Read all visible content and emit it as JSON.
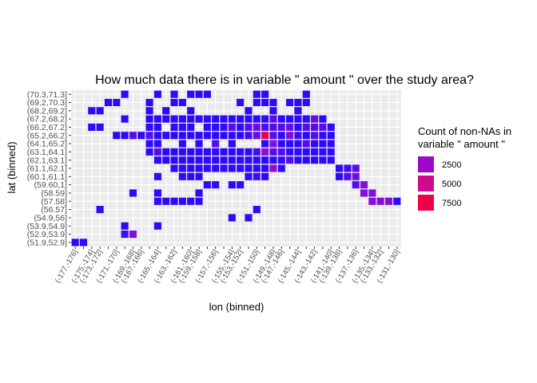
{
  "chart_data": {
    "type": "heatmap",
    "title": "How much data there is in variable \" amount \" over the study area?",
    "xlabel": "lon (binned)",
    "ylabel": "lat (binned)",
    "x_ticks": [
      "(-177,-176]",
      "(-175,-174]",
      "(-173,-172]",
      "(-171,-170]",
      "(-169,-168]",
      "(-167,-166]",
      "(-165,-164]",
      "(-163,-162]",
      "(-161,-160]",
      "(-159,-158]",
      "(-157,-156]",
      "(-155,-154]",
      "(-153,-152]",
      "(-151,-150]",
      "(-149,-148]",
      "(-147,-146]",
      "(-145,-144]",
      "(-143,-142]",
      "(-141,-140]",
      "(-139,-138]",
      "(-137,-136]",
      "(-135,-134]",
      "(-133,-132]",
      "(-131,-130]"
    ],
    "y_ticks": [
      "(70.3,71.3]",
      "(69.2,70.3]",
      "(68.2,69.2]",
      "(67.2,68.2]",
      "(66.2,67.2]",
      "(65.2,66.2]",
      "(64.1,65.2]",
      "(63.1,64.1]",
      "(62.1,63.1]",
      "(61.1,62.1]",
      "(60.1,61.1]",
      "(59.60,1]",
      "(58.59]",
      "(57.58]",
      "(56.57]",
      "(54.9,56]",
      "(53.9,54.9]",
      "(52.9,53.9]",
      "(51.9,52.9]"
    ],
    "legend": {
      "title": "Count of non-NAs in\nvariable \" amount \"",
      "entries": [
        {
          "label": "2500",
          "color": "#9b0bc7"
        },
        {
          "label": "5000",
          "color": "#cc0a8a"
        },
        {
          "label": "7500",
          "color": "#ee0044"
        }
      ],
      "position": "right"
    },
    "colors": {
      "low": "#1a0aff",
      "mid": "#8a10d8",
      "high": "#ee0044",
      "panel": "#ebebeb",
      "grid": "#ffffff"
    },
    "n_cols": 40,
    "n_rows": 19,
    "cells": [
      [
        0,
        0,
        500
      ],
      [
        1,
        0,
        500
      ],
      [
        6,
        1,
        900
      ],
      [
        7,
        1,
        2600
      ],
      [
        6,
        2,
        500
      ],
      [
        10,
        2,
        500
      ],
      [
        19,
        3,
        500
      ],
      [
        21,
        3,
        500
      ],
      [
        3,
        4,
        500
      ],
      [
        22,
        4,
        500
      ],
      [
        10,
        5,
        500
      ],
      [
        11,
        5,
        500
      ],
      [
        12,
        5,
        500
      ],
      [
        13,
        5,
        500
      ],
      [
        14,
        5,
        500
      ],
      [
        15,
        5,
        500
      ],
      [
        36,
        5,
        2700
      ],
      [
        37,
        5,
        2700
      ],
      [
        38,
        5,
        2700
      ],
      [
        39,
        5,
        500
      ],
      [
        7,
        6,
        500
      ],
      [
        10,
        6,
        500
      ],
      [
        15,
        6,
        500
      ],
      [
        35,
        6,
        2600
      ],
      [
        36,
        6,
        2600
      ],
      [
        16,
        7,
        500
      ],
      [
        17,
        7,
        500
      ],
      [
        19,
        7,
        500
      ],
      [
        20,
        7,
        500
      ],
      [
        34,
        7,
        1500
      ],
      [
        35,
        7,
        2600
      ],
      [
        10,
        8,
        500
      ],
      [
        13,
        8,
        500
      ],
      [
        14,
        8,
        500
      ],
      [
        15,
        8,
        500
      ],
      [
        21,
        8,
        500
      ],
      [
        22,
        8,
        1000
      ],
      [
        23,
        8,
        500
      ],
      [
        32,
        8,
        500
      ],
      [
        33,
        8,
        1500
      ],
      [
        34,
        8,
        2000
      ],
      [
        12,
        9,
        500
      ],
      [
        13,
        9,
        500
      ],
      [
        14,
        9,
        500
      ],
      [
        15,
        9,
        500
      ],
      [
        16,
        9,
        500
      ],
      [
        17,
        9,
        500
      ],
      [
        18,
        9,
        500
      ],
      [
        19,
        9,
        500
      ],
      [
        20,
        9,
        500
      ],
      [
        21,
        9,
        500
      ],
      [
        22,
        9,
        500
      ],
      [
        23,
        9,
        500
      ],
      [
        24,
        9,
        3500
      ],
      [
        25,
        9,
        500
      ],
      [
        32,
        9,
        500
      ],
      [
        33,
        9,
        1000
      ],
      [
        34,
        9,
        1500
      ],
      [
        10,
        10,
        500
      ],
      [
        11,
        10,
        500
      ],
      [
        12,
        10,
        500
      ],
      [
        13,
        10,
        500
      ],
      [
        14,
        10,
        500
      ],
      [
        15,
        10,
        500
      ],
      [
        16,
        10,
        500
      ],
      [
        17,
        10,
        500
      ],
      [
        18,
        10,
        500
      ],
      [
        19,
        10,
        500
      ],
      [
        20,
        10,
        500
      ],
      [
        21,
        10,
        500
      ],
      [
        22,
        10,
        500
      ],
      [
        23,
        10,
        500
      ],
      [
        24,
        10,
        500
      ],
      [
        25,
        10,
        500
      ],
      [
        26,
        10,
        1500
      ],
      [
        27,
        10,
        500
      ],
      [
        28,
        10,
        500
      ],
      [
        29,
        10,
        500
      ],
      [
        30,
        10,
        500
      ],
      [
        31,
        10,
        500
      ],
      [
        9,
        11,
        500
      ],
      [
        10,
        11,
        1500
      ],
      [
        11,
        11,
        500
      ],
      [
        12,
        11,
        500
      ],
      [
        13,
        11,
        500
      ],
      [
        14,
        11,
        500
      ],
      [
        15,
        11,
        500
      ],
      [
        16,
        11,
        500
      ],
      [
        17,
        11,
        500
      ],
      [
        18,
        11,
        500
      ],
      [
        19,
        11,
        500
      ],
      [
        20,
        11,
        500
      ],
      [
        21,
        11,
        500
      ],
      [
        22,
        11,
        1200
      ],
      [
        23,
        11,
        3000
      ],
      [
        24,
        11,
        1500
      ],
      [
        25,
        11,
        1500
      ],
      [
        26,
        11,
        500
      ],
      [
        27,
        11,
        500
      ],
      [
        28,
        11,
        500
      ],
      [
        29,
        11,
        500
      ],
      [
        30,
        11,
        500
      ],
      [
        31,
        11,
        500
      ],
      [
        9,
        12,
        500
      ],
      [
        10,
        12,
        500
      ],
      [
        13,
        12,
        500
      ],
      [
        15,
        12,
        500
      ],
      [
        17,
        12,
        1500
      ],
      [
        19,
        12,
        500
      ],
      [
        23,
        12,
        500
      ],
      [
        24,
        12,
        2500
      ],
      [
        25,
        12,
        500
      ],
      [
        26,
        12,
        500
      ],
      [
        27,
        12,
        500
      ],
      [
        28,
        12,
        1500
      ],
      [
        29,
        12,
        500
      ],
      [
        30,
        12,
        500
      ],
      [
        31,
        12,
        500
      ],
      [
        5,
        13,
        500
      ],
      [
        6,
        13,
        500
      ],
      [
        7,
        13,
        1500
      ],
      [
        8,
        13,
        500
      ],
      [
        9,
        13,
        1500
      ],
      [
        10,
        13,
        500
      ],
      [
        11,
        13,
        500
      ],
      [
        12,
        13,
        500
      ],
      [
        13,
        13,
        500
      ],
      [
        14,
        13,
        500
      ],
      [
        15,
        13,
        500
      ],
      [
        16,
        13,
        500
      ],
      [
        17,
        13,
        500
      ],
      [
        18,
        13,
        500
      ],
      [
        19,
        13,
        500
      ],
      [
        20,
        13,
        500
      ],
      [
        21,
        13,
        1000
      ],
      [
        22,
        13,
        2000
      ],
      [
        23,
        13,
        7500
      ],
      [
        24,
        13,
        1500
      ],
      [
        25,
        13,
        500
      ],
      [
        26,
        13,
        2500
      ],
      [
        27,
        13,
        1000
      ],
      [
        28,
        13,
        500
      ],
      [
        29,
        13,
        1500
      ],
      [
        30,
        13,
        500
      ],
      [
        31,
        13,
        500
      ],
      [
        2,
        14,
        500
      ],
      [
        3,
        14,
        500
      ],
      [
        9,
        14,
        500
      ],
      [
        10,
        14,
        500
      ],
      [
        12,
        14,
        500
      ],
      [
        13,
        14,
        500
      ],
      [
        14,
        14,
        500
      ],
      [
        16,
        14,
        500
      ],
      [
        17,
        14,
        500
      ],
      [
        18,
        14,
        500
      ],
      [
        19,
        14,
        1500
      ],
      [
        20,
        14,
        500
      ],
      [
        21,
        14,
        1500
      ],
      [
        22,
        14,
        2000
      ],
      [
        23,
        14,
        1500
      ],
      [
        24,
        14,
        1500
      ],
      [
        25,
        14,
        1500
      ],
      [
        26,
        14,
        2000
      ],
      [
        27,
        14,
        500
      ],
      [
        28,
        14,
        1500
      ],
      [
        29,
        14,
        1500
      ],
      [
        30,
        14,
        1500
      ],
      [
        31,
        14,
        500
      ],
      [
        6,
        15,
        500
      ],
      [
        9,
        15,
        500
      ],
      [
        10,
        15,
        500
      ],
      [
        11,
        15,
        500
      ],
      [
        12,
        15,
        500
      ],
      [
        13,
        15,
        500
      ],
      [
        14,
        15,
        500
      ],
      [
        15,
        15,
        500
      ],
      [
        16,
        15,
        500
      ],
      [
        17,
        15,
        500
      ],
      [
        18,
        15,
        500
      ],
      [
        19,
        15,
        500
      ],
      [
        20,
        15,
        500
      ],
      [
        21,
        15,
        500
      ],
      [
        22,
        15,
        500
      ],
      [
        23,
        15,
        500
      ],
      [
        24,
        15,
        1500
      ],
      [
        25,
        15,
        500
      ],
      [
        26,
        15,
        500
      ],
      [
        27,
        15,
        500
      ],
      [
        28,
        15,
        500
      ],
      [
        29,
        15,
        2000
      ],
      [
        30,
        15,
        500
      ],
      [
        2,
        16,
        500
      ],
      [
        3,
        16,
        500
      ],
      [
        9,
        16,
        500
      ],
      [
        11,
        16,
        500
      ],
      [
        14,
        16,
        500
      ],
      [
        21,
        16,
        500
      ],
      [
        24,
        16,
        500
      ],
      [
        27,
        16,
        500
      ],
      [
        4,
        17,
        500
      ],
      [
        5,
        17,
        500
      ],
      [
        9,
        17,
        500
      ],
      [
        12,
        17,
        500
      ],
      [
        13,
        17,
        500
      ],
      [
        20,
        17,
        500
      ],
      [
        22,
        17,
        500
      ],
      [
        23,
        17,
        500
      ],
      [
        24,
        17,
        500
      ],
      [
        26,
        17,
        500
      ],
      [
        27,
        17,
        500
      ],
      [
        28,
        17,
        500
      ],
      [
        6,
        18,
        500
      ],
      [
        10,
        18,
        500
      ],
      [
        12,
        18,
        500
      ],
      [
        14,
        18,
        500
      ],
      [
        15,
        18,
        500
      ],
      [
        16,
        18,
        500
      ],
      [
        22,
        18,
        500
      ],
      [
        23,
        18,
        500
      ],
      [
        28,
        18,
        500
      ]
    ]
  }
}
